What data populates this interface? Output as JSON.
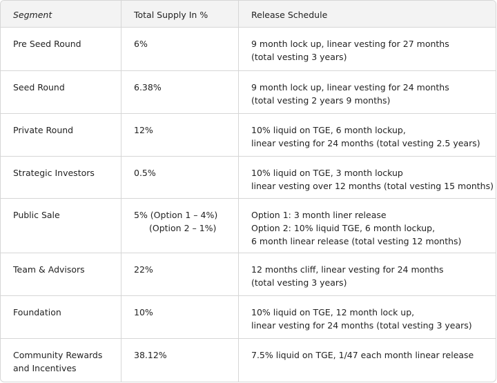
{
  "table": {
    "header": [
      "Segment",
      "Total Supply In %",
      "Release Schedule"
    ],
    "rows": [
      [
        [
          "Pre Seed Round"
        ],
        [
          "6%"
        ],
        [
          "9 month lock up, linear vesting for 27 months",
          "(total vesting 3 years)"
        ]
      ],
      [
        [
          "Seed Round"
        ],
        [
          "6.38%"
        ],
        [
          "9 month lock up, linear vesting for 24 months",
          "(total vesting 2 years 9 months)"
        ]
      ],
      [
        [
          "Private Round"
        ],
        [
          "12%"
        ],
        [
          "10% liquid on TGE, 6 month lockup,",
          "linear vesting for 24 months (total vesting 2.5 years)"
        ]
      ],
      [
        [
          "Strategic Investors"
        ],
        [
          "0.5%"
        ],
        [
          "10% liquid on TGE, 3 month lockup",
          "linear vesting over 12 months (total vesting 15 months)"
        ]
      ],
      [
        [
          "Public Sale"
        ],
        [
          "5% (Option 1 – 4%)",
          "(Option 2 – 1%)"
        ],
        [
          "Option 1: 3 month liner release",
          "Option 2: 10% liquid TGE, 6 month lockup,",
          "6 month linear release (total vesting 12 months)"
        ]
      ],
      [
        [
          "Team & Advisors"
        ],
        [
          "22%"
        ],
        [
          "12 months cliff, linear vesting for 24 months",
          "(total vesting 3 years)"
        ]
      ],
      [
        [
          "Foundation"
        ],
        [
          "10%"
        ],
        [
          "10% liquid on TGE, 12 month lock up,",
          "linear vesting for 24 months (total vesting 3 years)"
        ]
      ],
      [
        [
          "Community Rewards",
          "and Incentives"
        ],
        [
          "38.12%"
        ],
        [
          "7.5% liquid on TGE, 1/47 each month linear release"
        ]
      ]
    ]
  }
}
